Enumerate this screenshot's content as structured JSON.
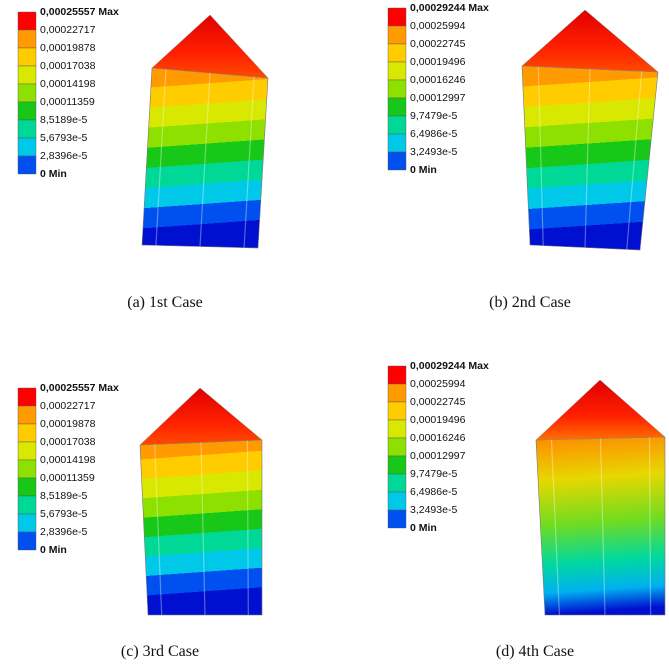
{
  "panels": [
    {
      "legend": [
        "0,00025557 Max",
        "0,00022717",
        "0,00019878",
        "0,00017038",
        "0,00014198",
        "0,00011359",
        "8,5189e-5",
        "5,6793e-5",
        "2,8396e-5",
        "0 Min"
      ],
      "caption": "(a) 1st Case"
    },
    {
      "legend": [
        "0,00029244 Max",
        "0,00025994",
        "0,00022745",
        "0,00019496",
        "0,00016246",
        "0,00012997",
        "9,7479e-5",
        "6,4986e-5",
        "3,2493e-5",
        "0 Min"
      ],
      "caption": "(b) 2nd Case"
    },
    {
      "legend": [
        "0,00025557 Max",
        "0,00022717",
        "0,00019878",
        "0,00017038",
        "0,00014198",
        "0,00011359",
        "8,5189e-5",
        "5,6793e-5",
        "2,8396e-5",
        "0 Min"
      ],
      "caption": "(c) 3rd Case"
    },
    {
      "legend": [
        "0,00029244 Max",
        "0,00025994",
        "0,00022745",
        "0,00019496",
        "0,00016246",
        "0,00012997",
        "9,7479e-5",
        "6,4986e-5",
        "3,2493e-5",
        "0 Min"
      ],
      "caption": "(d) 4th Case"
    }
  ]
}
